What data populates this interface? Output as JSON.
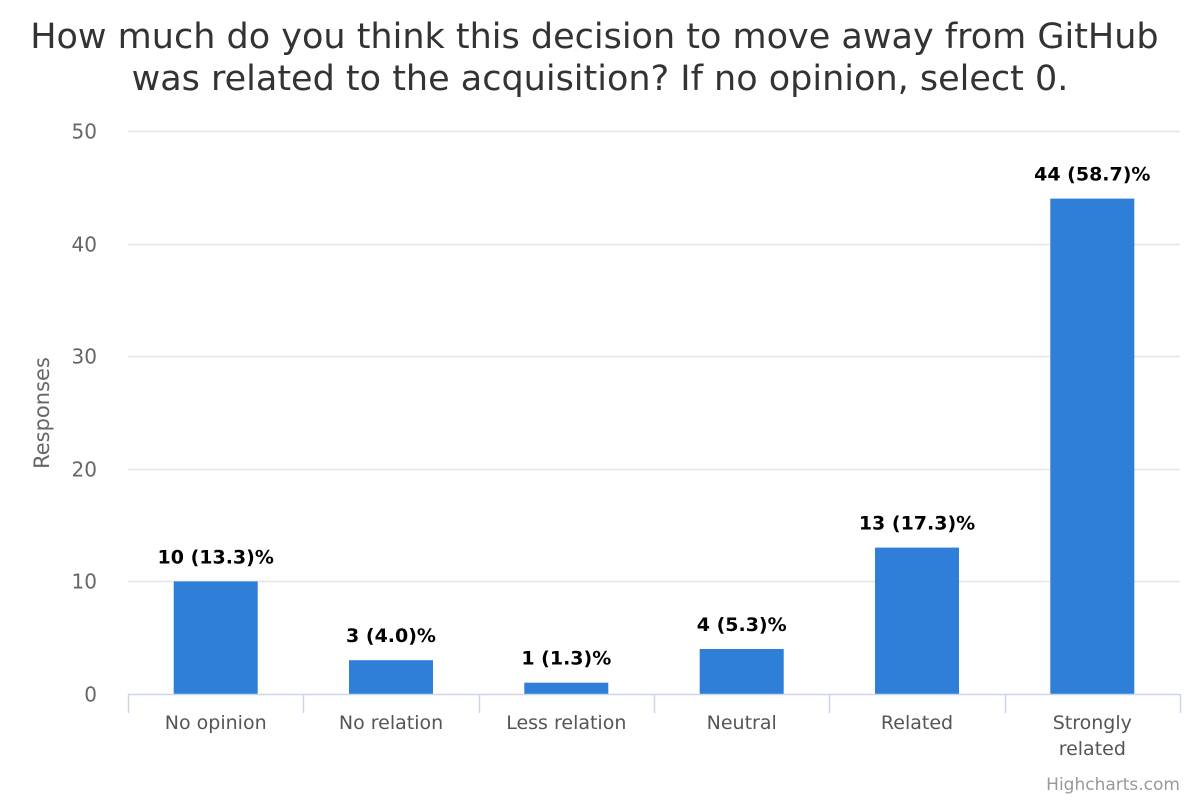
{
  "chart_data": {
    "type": "bar",
    "title_lines": [
      "How much do you think this decision to move away from GitHub",
      "was related to the acquisition? If no opinion, select 0."
    ],
    "xlabel": "",
    "ylabel": "Responses",
    "categories": [
      [
        "No opinion"
      ],
      [
        "No relation"
      ],
      [
        "Less relation"
      ],
      [
        "Neutral"
      ],
      [
        "Related"
      ],
      [
        "Strongly",
        "related"
      ]
    ],
    "values": [
      10,
      3,
      1,
      4,
      13,
      44
    ],
    "data_labels": [
      "10 (13.3)%",
      "3 (4.0)%",
      "1 (1.3)%",
      "4 (5.3)%",
      "13 (17.3)%",
      "44 (58.7)%"
    ],
    "ylim": [
      0,
      50
    ],
    "yticks": [
      0,
      10,
      20,
      30,
      40,
      50
    ],
    "grid": true,
    "legend": "none",
    "colors": {
      "bar": "#2f7ed8",
      "grid": "#e6e6e6",
      "axis": "#ccd6eb"
    }
  },
  "credits": "Highcharts.com"
}
